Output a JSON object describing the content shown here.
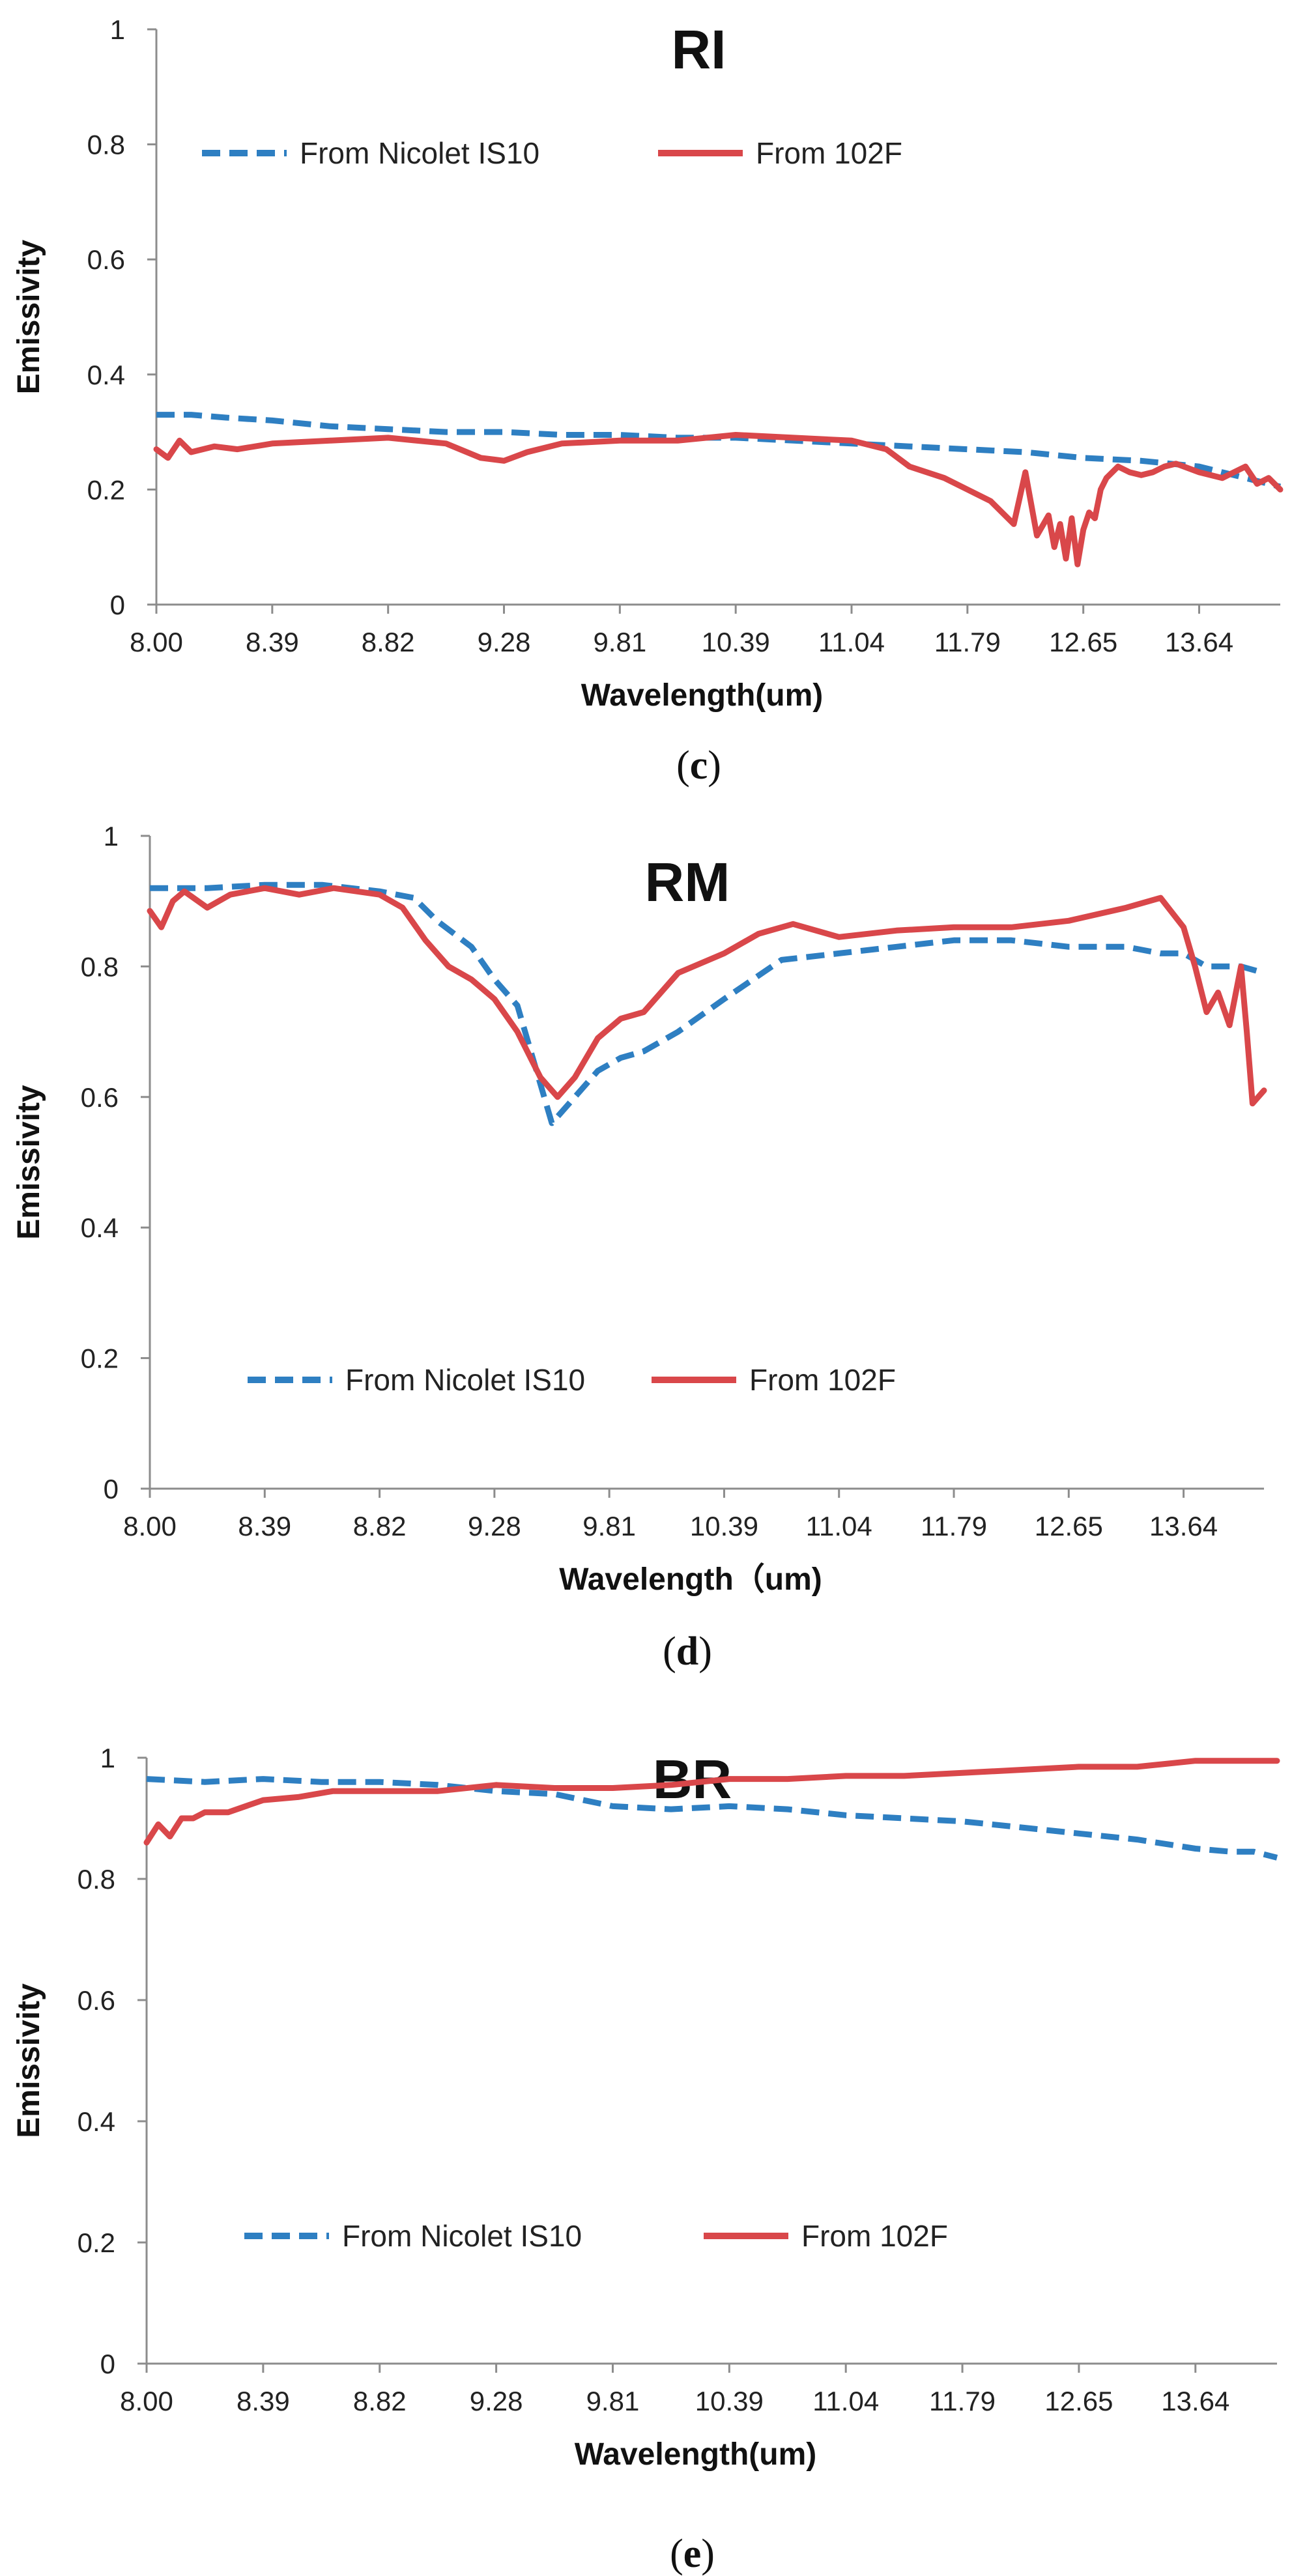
{
  "colors": {
    "nicolet": "#2E7FC2",
    "f102": "#D9474A",
    "axis": "#8c8c8c"
  },
  "chart_data": [
    {
      "type": "line",
      "title": "RI",
      "caption": "c",
      "xlabel": "Wavelength(um)",
      "ylabel": "Emissivity",
      "x_tick_labels": [
        "8.00",
        "8.39",
        "8.82",
        "9.28",
        "9.81",
        "10.39",
        "11.04",
        "11.79",
        "12.65",
        "13.64"
      ],
      "y_tick_labels": [
        "0",
        "0.2",
        "0.4",
        "0.6",
        "0.8",
        "1"
      ],
      "ylim": [
        0,
        1
      ],
      "x_range_index": [
        0,
        9.7
      ],
      "legend_position": "top",
      "series": [
        {
          "name": "From Nicolet IS10",
          "style": "dashed",
          "x": [
            0,
            0.3,
            0.6,
            1.0,
            1.5,
            2.0,
            2.5,
            3.0,
            3.5,
            4.0,
            4.5,
            5.0,
            5.5,
            6.0,
            6.5,
            7.0,
            7.5,
            8.0,
            8.5,
            9.0,
            9.3,
            9.5,
            9.7
          ],
          "y": [
            0.33,
            0.33,
            0.325,
            0.32,
            0.31,
            0.305,
            0.3,
            0.3,
            0.295,
            0.295,
            0.29,
            0.29,
            0.285,
            0.28,
            0.275,
            0.27,
            0.265,
            0.255,
            0.25,
            0.24,
            0.225,
            0.215,
            0.205
          ]
        },
        {
          "name": "From 102F",
          "style": "solid",
          "x": [
            0,
            0.1,
            0.2,
            0.3,
            0.5,
            0.7,
            1.0,
            1.5,
            2.0,
            2.5,
            2.8,
            3.0,
            3.2,
            3.5,
            4.0,
            4.5,
            5.0,
            5.5,
            6.0,
            6.3,
            6.5,
            6.8,
            7.0,
            7.2,
            7.4,
            7.5,
            7.6,
            7.7,
            7.75,
            7.8,
            7.85,
            7.9,
            7.95,
            8.0,
            8.05,
            8.1,
            8.15,
            8.2,
            8.3,
            8.4,
            8.5,
            8.6,
            8.7,
            8.8,
            9.0,
            9.2,
            9.4,
            9.5,
            9.6,
            9.7
          ],
          "y": [
            0.27,
            0.255,
            0.285,
            0.265,
            0.275,
            0.27,
            0.28,
            0.285,
            0.29,
            0.28,
            0.255,
            0.25,
            0.265,
            0.28,
            0.285,
            0.285,
            0.295,
            0.29,
            0.285,
            0.27,
            0.24,
            0.22,
            0.2,
            0.18,
            0.14,
            0.23,
            0.12,
            0.155,
            0.1,
            0.14,
            0.08,
            0.15,
            0.07,
            0.13,
            0.16,
            0.15,
            0.2,
            0.22,
            0.24,
            0.23,
            0.225,
            0.23,
            0.24,
            0.245,
            0.23,
            0.22,
            0.24,
            0.21,
            0.22,
            0.2
          ]
        }
      ]
    },
    {
      "type": "line",
      "title": "RM",
      "caption": "d",
      "xlabel": "Wavelength（um)",
      "ylabel": "Emissivity",
      "x_tick_labels": [
        "8.00",
        "8.39",
        "8.82",
        "9.28",
        "9.81",
        "10.39",
        "11.04",
        "11.79",
        "12.65",
        "13.64"
      ],
      "y_tick_labels": [
        "0",
        "0.2",
        "0.4",
        "0.6",
        "0.8",
        "1"
      ],
      "ylim": [
        0,
        1
      ],
      "x_range_index": [
        0,
        9.7
      ],
      "legend_position": "bottom",
      "series": [
        {
          "name": "From Nicolet IS10",
          "style": "dashed",
          "x": [
            0,
            0.5,
            1.0,
            1.5,
            2.0,
            2.3,
            2.5,
            2.8,
            3.0,
            3.2,
            3.5,
            3.7,
            3.9,
            4.1,
            4.3,
            4.6,
            5.0,
            5.5,
            6.0,
            6.5,
            7.0,
            7.5,
            8.0,
            8.5,
            8.8,
            9.0,
            9.2,
            9.5,
            9.7
          ],
          "y": [
            0.92,
            0.92,
            0.925,
            0.925,
            0.915,
            0.905,
            0.87,
            0.83,
            0.78,
            0.74,
            0.56,
            0.6,
            0.64,
            0.66,
            0.67,
            0.7,
            0.75,
            0.81,
            0.82,
            0.83,
            0.84,
            0.84,
            0.83,
            0.83,
            0.82,
            0.82,
            0.8,
            0.8,
            0.79
          ]
        },
        {
          "name": "From 102F",
          "style": "solid",
          "x": [
            0,
            0.1,
            0.2,
            0.3,
            0.5,
            0.7,
            1.0,
            1.3,
            1.6,
            2.0,
            2.2,
            2.4,
            2.6,
            2.8,
            3.0,
            3.2,
            3.4,
            3.55,
            3.7,
            3.9,
            4.1,
            4.3,
            4.6,
            5.0,
            5.3,
            5.6,
            6.0,
            6.5,
            7.0,
            7.5,
            8.0,
            8.5,
            8.8,
            9.0,
            9.1,
            9.2,
            9.3,
            9.4,
            9.5,
            9.55,
            9.6,
            9.65,
            9.7
          ],
          "y": [
            0.885,
            0.86,
            0.9,
            0.915,
            0.89,
            0.91,
            0.92,
            0.91,
            0.92,
            0.91,
            0.89,
            0.84,
            0.8,
            0.78,
            0.75,
            0.7,
            0.63,
            0.6,
            0.63,
            0.69,
            0.72,
            0.73,
            0.79,
            0.82,
            0.85,
            0.865,
            0.845,
            0.855,
            0.86,
            0.86,
            0.87,
            0.89,
            0.905,
            0.86,
            0.8,
            0.73,
            0.76,
            0.71,
            0.8,
            0.7,
            0.59,
            0.6,
            0.61
          ]
        }
      ]
    },
    {
      "type": "line",
      "title": "BR",
      "caption": "e",
      "xlabel": "Wavelength(um)",
      "ylabel": "Emissivity",
      "x_tick_labels": [
        "8.00",
        "8.39",
        "8.82",
        "9.28",
        "9.81",
        "10.39",
        "11.04",
        "11.79",
        "12.65",
        "13.64"
      ],
      "y_tick_labels": [
        "0",
        "0.2",
        "0.4",
        "0.6",
        "0.8",
        "1"
      ],
      "ylim": [
        0,
        1
      ],
      "x_range_index": [
        0,
        9.7
      ],
      "legend_position": "bottom",
      "series": [
        {
          "name": "From Nicolet IS10",
          "style": "dashed",
          "x": [
            0,
            0.5,
            1.0,
            1.5,
            2.0,
            2.5,
            3.0,
            3.5,
            4.0,
            4.5,
            5.0,
            5.5,
            6.0,
            6.5,
            7.0,
            7.5,
            8.0,
            8.5,
            9.0,
            9.3,
            9.5,
            9.7
          ],
          "y": [
            0.965,
            0.96,
            0.965,
            0.96,
            0.96,
            0.955,
            0.945,
            0.94,
            0.92,
            0.915,
            0.92,
            0.915,
            0.905,
            0.9,
            0.895,
            0.885,
            0.875,
            0.865,
            0.85,
            0.845,
            0.845,
            0.835
          ]
        },
        {
          "name": "From 102F",
          "style": "solid",
          "x": [
            0,
            0.1,
            0.2,
            0.3,
            0.4,
            0.5,
            0.7,
            1.0,
            1.3,
            1.6,
            2.0,
            2.5,
            3.0,
            3.5,
            4.0,
            4.5,
            5.0,
            5.5,
            6.0,
            6.5,
            7.0,
            7.5,
            8.0,
            8.5,
            9.0,
            9.5,
            9.7
          ],
          "y": [
            0.86,
            0.89,
            0.87,
            0.9,
            0.9,
            0.91,
            0.91,
            0.93,
            0.935,
            0.945,
            0.945,
            0.945,
            0.955,
            0.95,
            0.95,
            0.955,
            0.965,
            0.965,
            0.97,
            0.97,
            0.975,
            0.98,
            0.985,
            0.985,
            0.995,
            0.995,
            0.995
          ]
        }
      ]
    }
  ]
}
